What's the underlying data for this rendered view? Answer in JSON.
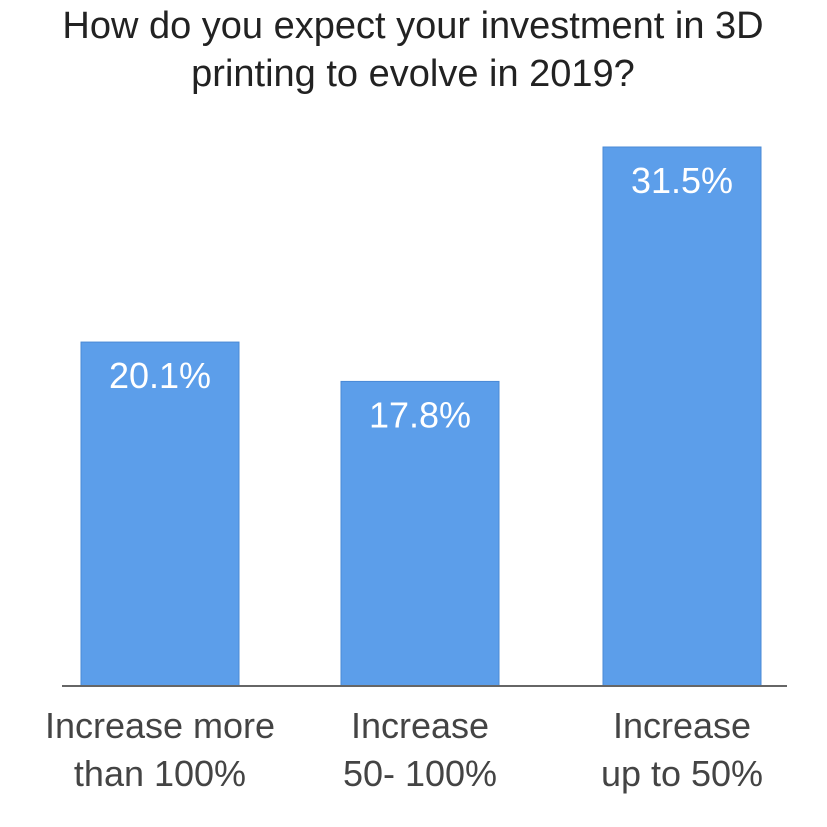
{
  "chart_data": {
    "type": "bar",
    "title": "How do you expect your investment in 3D printing to evolve in 2019?",
    "categories": [
      "Increase more than 100%",
      "Increase 50- 100%",
      "Increase up to 50%"
    ],
    "values": [
      20.1,
      17.8,
      31.5
    ],
    "value_labels": [
      "20.1%",
      "17.8%",
      "31.5%"
    ],
    "color": "#5c9eea"
  }
}
